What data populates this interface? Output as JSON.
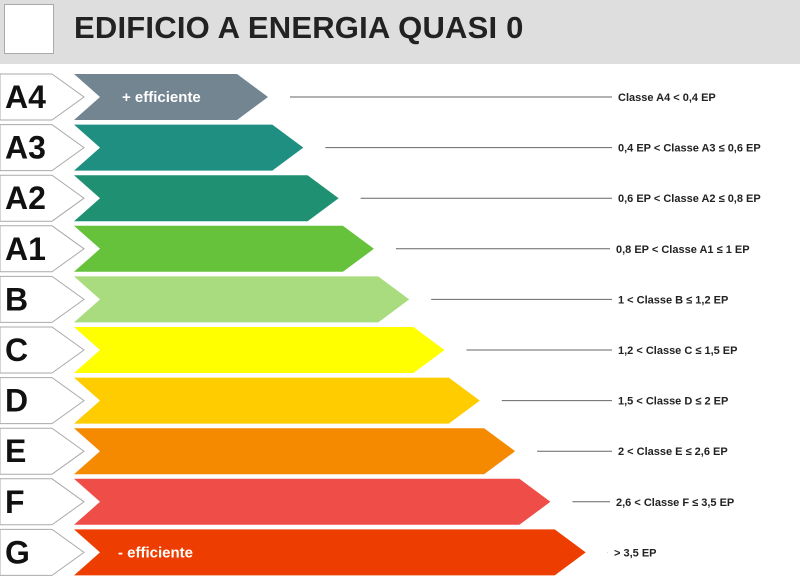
{
  "header": {
    "title": "EDIFICIO A ENERGIA QUASI 0"
  },
  "classes": [
    {
      "label": "A4",
      "color": "#738590",
      "tag": "+ efficiente",
      "range": "Classe A4 < 0,4 EP"
    },
    {
      "label": "A3",
      "color": "#1e8f80",
      "tag": "",
      "range": "0,4 EP < Classe A3 ≤ 0,6 EP"
    },
    {
      "label": "A2",
      "color": "#1f9072",
      "tag": "",
      "range": "0,6 EP < Classe A2 ≤ 0,8 EP"
    },
    {
      "label": "A1",
      "color": "#66c23a",
      "tag": "",
      "range": "0,8 EP < Classe A1 ≤ 1 EP"
    },
    {
      "label": "B",
      "color": "#a8dc7e",
      "tag": "",
      "range": "1 < Classe B ≤ 1,2 EP"
    },
    {
      "label": "C",
      "color": "#ffff00",
      "tag": "",
      "range": "1,2 < Classe C ≤ 1,5 EP"
    },
    {
      "label": "D",
      "color": "#ffcc00",
      "tag": "",
      "range": "1,5 < Classe D ≤ 2 EP"
    },
    {
      "label": "E",
      "color": "#f58a00",
      "tag": "",
      "range": "2 < Classe E ≤ 2,6 EP"
    },
    {
      "label": "F",
      "color": "#ee4d48",
      "tag": "",
      "range": "2,6 < Classe F ≤ 3,5 EP"
    },
    {
      "label": "G",
      "color": "#ee3d00",
      "tag": "- efficiente",
      "range": "> 3,5 EP"
    }
  ]
}
